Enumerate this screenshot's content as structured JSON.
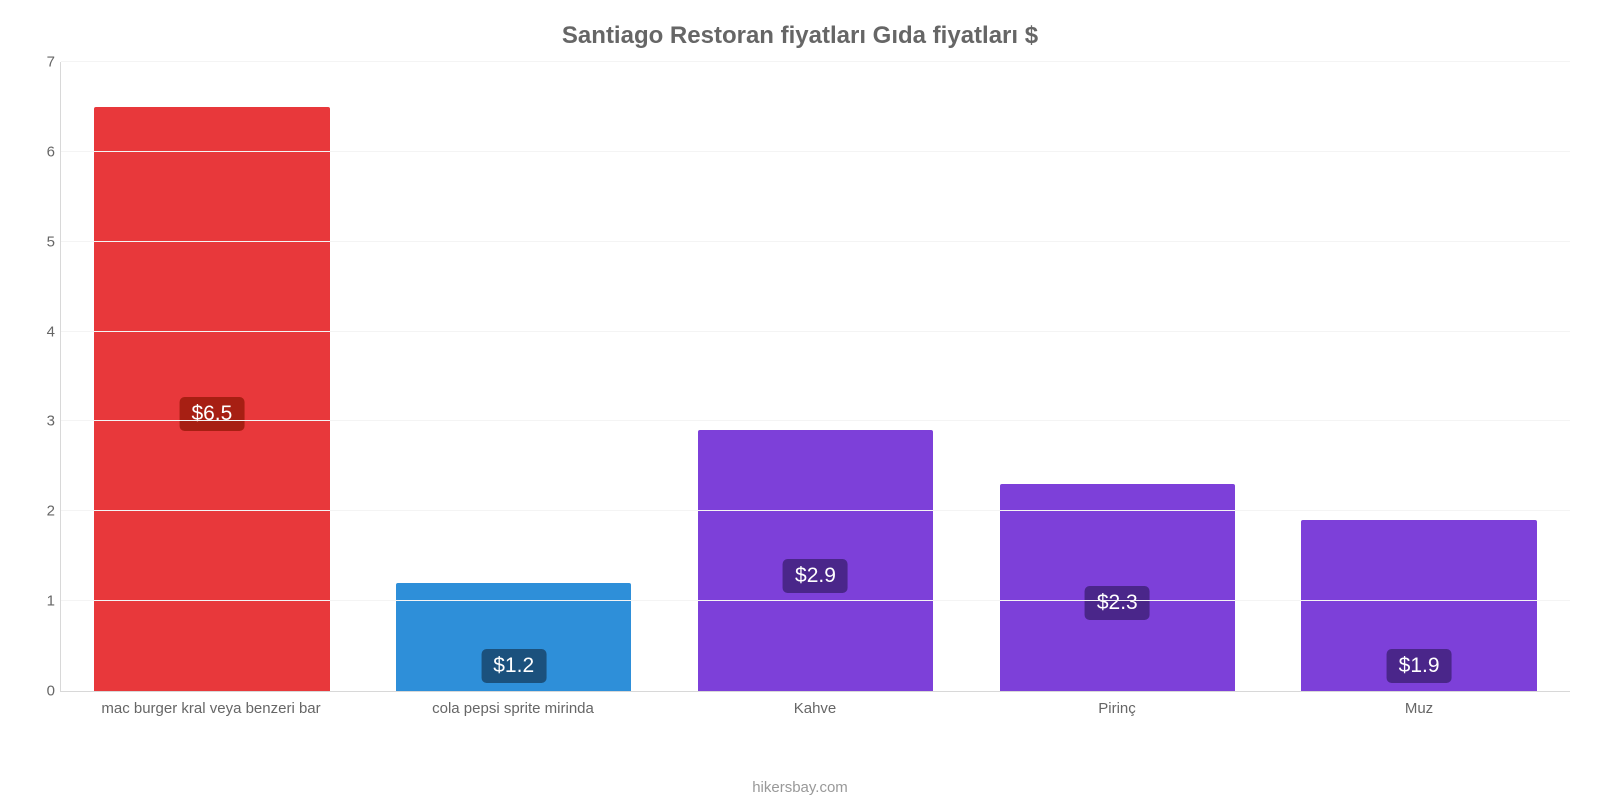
{
  "chart": {
    "type": "bar",
    "title": "Santiago Restoran fiyatları Gıda fiyatları $",
    "title_fontsize": 24,
    "title_color": "#666666",
    "background_color": "#ffffff",
    "grid_color": "#f4f4f4",
    "axis_color": "#d8d8d8",
    "tick_color": "#666666",
    "tick_fontsize": 15,
    "bar_width_ratio": 0.78,
    "y": {
      "min": 0,
      "max": 7,
      "step": 1,
      "ticks": [
        0,
        1,
        2,
        3,
        4,
        5,
        6,
        7
      ]
    },
    "categories": [
      "mac burger kral veya benzeri bar",
      "cola pepsi sprite mirinda",
      "Kahve",
      "Pirinç",
      "Muz"
    ],
    "values": [
      6.5,
      1.2,
      2.9,
      2.3,
      1.9
    ],
    "value_labels": [
      "$6.5",
      "$1.2",
      "$2.9",
      "$2.3",
      "$1.9"
    ],
    "bar_colors": [
      "#e8383b",
      "#2e8fd9",
      "#7d40d9",
      "#7d40d9",
      "#7d40d9"
    ],
    "label_bg_colors": [
      "#a71f13",
      "#1b517d",
      "#4a268a",
      "#4a268a",
      "#4a268a"
    ],
    "label_text_color": "#ffffff",
    "label_fontsize": 21,
    "footer": "hikersbay.com",
    "footer_color": "#999999"
  }
}
